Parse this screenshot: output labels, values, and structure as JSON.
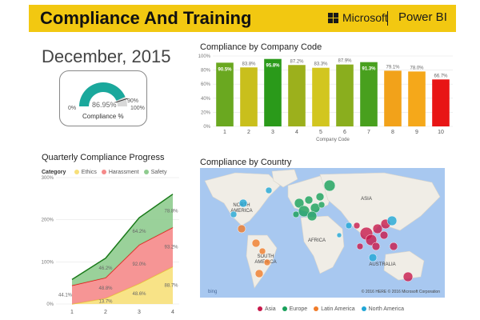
{
  "header": {
    "title": "Compliance And Training",
    "brand": "Microsoft",
    "product": "Power BI",
    "bg_color": "#f2c811"
  },
  "kpi": {
    "date": "December, 2015",
    "gauge": {
      "value": 86.95,
      "value_label": "86.95%",
      "min_label": "0%",
      "max_label": "100%",
      "target_label": "90%",
      "target": 90,
      "caption": "Compliance %",
      "fill_color": "#1aa89c"
    }
  },
  "company_chart": {
    "title": "Compliance by Company Code",
    "chart_data": {
      "type": "bar",
      "title": "Compliance by Company Code",
      "xlabel": "Company Code",
      "ylabel": "",
      "ylim": [
        0,
        100
      ],
      "y_ticks": [
        "0%",
        "20%",
        "40%",
        "60%",
        "80%",
        "100%"
      ],
      "categories": [
        "1",
        "2",
        "3",
        "4",
        "5",
        "6",
        "7",
        "8",
        "9",
        "10"
      ],
      "values": [
        90.5,
        83.8,
        95.8,
        87.2,
        83.3,
        87.9,
        91.3,
        79.1,
        78.0,
        66.7
      ],
      "labels": [
        "90.5%",
        "83.8%",
        "95.8%",
        "87.2%",
        "83.3%",
        "87.9%",
        "91.3%",
        "79.1%",
        "78.0%",
        "66.7%"
      ],
      "colors": [
        "#6aa820",
        "#c9bf1c",
        "#2a9a1a",
        "#9cb01c",
        "#d2c620",
        "#8aae1e",
        "#48a01e",
        "#f2a21a",
        "#f5a81a",
        "#e81515"
      ],
      "grid": true
    }
  },
  "quarterly_chart": {
    "title": "Quarterly Compliance Progress",
    "legend_title": "Category",
    "chart_data": {
      "type": "area",
      "title": "Quarterly Compliance Progress",
      "stacked": true,
      "x": [
        "1",
        "2",
        "3",
        "4"
      ],
      "ylim": [
        0,
        300
      ],
      "y_ticks": [
        "0%",
        "100%",
        "200%",
        "300%"
      ],
      "legend_position": "top-left",
      "series": [
        {
          "name": "Ethics",
          "values": [
            0,
            13.7,
            48.6,
            88.7
          ],
          "labels": [
            "",
            "13.7%",
            "48.6%",
            "88.7%"
          ],
          "color": "#f7e07a"
        },
        {
          "name": "Harassment",
          "values": [
            44.1,
            48.8,
            92.0,
            93.2
          ],
          "labels": [
            "44.1%",
            "48.8%",
            "92.0%",
            "93.2%"
          ],
          "color": "#f58a8a"
        },
        {
          "name": "Safety",
          "values": [
            14,
            46.2,
            64.2,
            78.8
          ],
          "labels": [
            "",
            "46.2%",
            "64.2%",
            "78.8%"
          ],
          "color": "#8fcc8f"
        }
      ],
      "line_colors": [
        "#e8c840",
        "#e81515",
        "#1a7a1a"
      ],
      "grid": true
    }
  },
  "country_map": {
    "title": "Compliance by Country",
    "labels": {
      "north_america": "NORTH\nAMERICA",
      "asia": "ASIA",
      "africa": "AFRICA",
      "south_america": "SOUTH\nAMERICA",
      "australia": "AUSTRALIA"
    },
    "bing": "bing",
    "copyright": "© 2016 HERE    © 2016 Microsoft Corporation",
    "legend": [
      {
        "name": "Asia",
        "color": "#c8194b"
      },
      {
        "name": "Europe",
        "color": "#18a05a"
      },
      {
        "name": "Latin America",
        "color": "#f07c2a"
      },
      {
        "name": "North America",
        "color": "#21a6d6"
      }
    ],
    "ocean_color": "#a8c8f0",
    "land_color": "#f0ede6"
  }
}
